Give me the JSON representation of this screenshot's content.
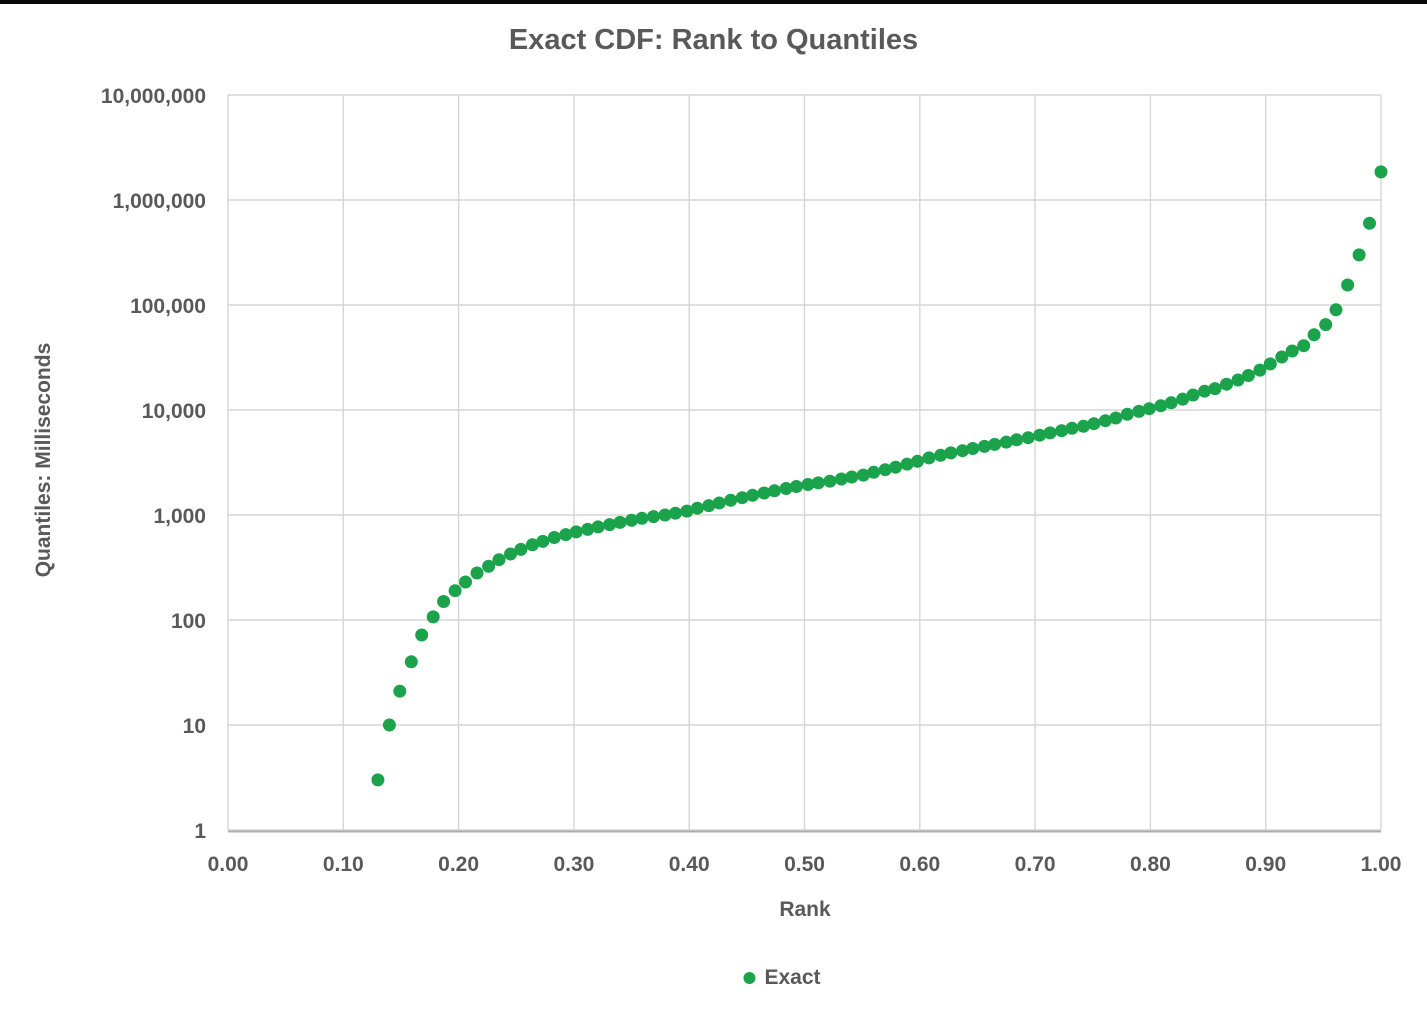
{
  "colors": {
    "accent_green": "#1BA34C",
    "text": "#595959",
    "gridline": "#D6D6D6",
    "axis_line": "#ACACAC",
    "top_bar": "#0A0A0A"
  },
  "chart_data": {
    "type": "scatter",
    "title": "Exact CDF: Rank to Quantiles",
    "xlabel": "Rank",
    "ylabel": "Quantiles: Milliseconds",
    "grid": true,
    "legend_position": "bottom",
    "x_axis": {
      "min": 0,
      "max": 1,
      "ticks": [
        "0.00",
        "0.10",
        "0.20",
        "0.30",
        "0.40",
        "0.50",
        "0.60",
        "0.70",
        "0.80",
        "0.90",
        "1.00"
      ],
      "tick_values": [
        0,
        0.1,
        0.2,
        0.3,
        0.4,
        0.5,
        0.6,
        0.7,
        0.8,
        0.9,
        1.0
      ]
    },
    "y_axis": {
      "scale": "log",
      "min": 1,
      "max": 10000000,
      "ticks": [
        "1",
        "10",
        "100",
        "1,000",
        "10,000",
        "100,000",
        "1,000,000",
        "10,000,000"
      ],
      "tick_values": [
        1,
        10,
        100,
        1000,
        10000,
        100000,
        1000000,
        10000000
      ]
    },
    "series": [
      {
        "name": "Exact",
        "color": "#1BA34C",
        "marker": "circle",
        "x": [
          0.13,
          0.14,
          0.149,
          0.159,
          0.168,
          0.178,
          0.187,
          0.197,
          0.206,
          0.216,
          0.226,
          0.235,
          0.245,
          0.254,
          0.264,
          0.273,
          0.283,
          0.293,
          0.302,
          0.312,
          0.321,
          0.331,
          0.34,
          0.35,
          0.359,
          0.369,
          0.379,
          0.388,
          0.398,
          0.407,
          0.417,
          0.426,
          0.436,
          0.446,
          0.455,
          0.465,
          0.474,
          0.484,
          0.493,
          0.503,
          0.512,
          0.522,
          0.532,
          0.541,
          0.551,
          0.56,
          0.57,
          0.579,
          0.589,
          0.598,
          0.608,
          0.618,
          0.627,
          0.637,
          0.646,
          0.656,
          0.665,
          0.675,
          0.684,
          0.694,
          0.704,
          0.713,
          0.723,
          0.732,
          0.742,
          0.751,
          0.761,
          0.77,
          0.78,
          0.79,
          0.799,
          0.809,
          0.818,
          0.828,
          0.837,
          0.847,
          0.856,
          0.866,
          0.876,
          0.885,
          0.895,
          0.904,
          0.914,
          0.923,
          0.933,
          0.942,
          0.952,
          0.961,
          0.971,
          0.981,
          0.99,
          1.0
        ],
        "y": [
          3,
          10,
          21,
          40,
          72,
          107,
          150,
          190,
          230,
          280,
          325,
          375,
          425,
          470,
          520,
          560,
          610,
          650,
          690,
          730,
          770,
          810,
          850,
          890,
          930,
          965,
          1000,
          1040,
          1090,
          1160,
          1230,
          1300,
          1380,
          1460,
          1540,
          1620,
          1700,
          1790,
          1870,
          1950,
          2020,
          2100,
          2200,
          2300,
          2400,
          2550,
          2700,
          2850,
          3050,
          3250,
          3500,
          3700,
          3900,
          4100,
          4300,
          4500,
          4700,
          4950,
          5200,
          5450,
          5750,
          6050,
          6350,
          6700,
          7000,
          7400,
          7900,
          8400,
          9100,
          9700,
          10300,
          11000,
          11700,
          12700,
          13900,
          15100,
          16000,
          17600,
          19300,
          21300,
          24000,
          27500,
          32000,
          36500,
          41000,
          52000,
          65000,
          90000,
          155000,
          300000,
          600000,
          1850000
        ]
      }
    ]
  }
}
